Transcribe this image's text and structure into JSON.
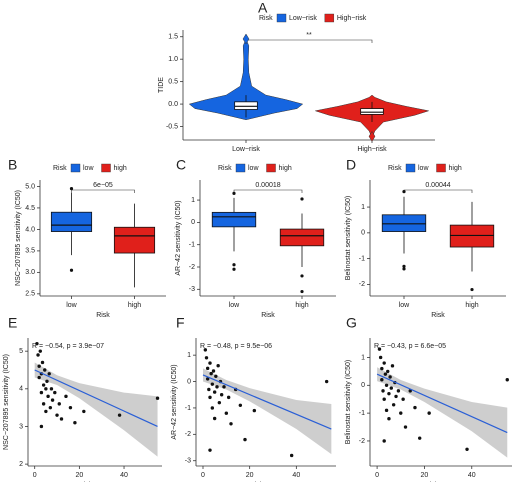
{
  "chart_data": [
    {
      "type": "violin",
      "panel": "A",
      "ylabel": "TIDE",
      "legend_title": "Risk",
      "annotation": "**",
      "categories": [
        "Low−risk",
        "High−risk"
      ],
      "ylim": [
        -0.8,
        1.65
      ],
      "yticks": [
        -0.5,
        {
          "value": 0,
          "label": "0.0"
        },
        0.5,
        {
          "value": 1,
          "label": "1.0"
        },
        1.5
      ],
      "series": [
        {
          "name": "Low−risk",
          "color": "#1565e0",
          "whisker_low": -0.3,
          "q1": -0.12,
          "median": -0.05,
          "q3": 0.05,
          "whisker_high": 0.2,
          "outliers": [
            1.45
          ],
          "levels": [
            -0.35,
            -0.2,
            -0.1,
            0,
            0.1,
            0.2,
            0.4,
            0.7,
            1.0,
            1.3,
            1.45
          ],
          "density": [
            0,
            0.5,
            0.9,
            1,
            0.7,
            0.35,
            0.1,
            0.05,
            0.04,
            0.05,
            0
          ]
        },
        {
          "name": "High−risk",
          "color": "#e0201b",
          "whisker_low": -0.4,
          "q1": -0.23,
          "median": -0.18,
          "q3": -0.1,
          "whisker_high": 0.05,
          "outliers": [
            -0.72
          ],
          "levels": [
            -0.75,
            -0.6,
            -0.4,
            -0.25,
            -0.15,
            -0.05,
            0.05,
            0.15,
            0.2
          ],
          "density": [
            0,
            0.05,
            0.2,
            0.75,
            1,
            0.6,
            0.25,
            0.05,
            0
          ]
        }
      ]
    },
    {
      "type": "box",
      "panel": "B",
      "ylabel": "NSC−207895 sensitivity (IC50)",
      "xlabel": "Risk",
      "legend_title": "Risk",
      "annotation": "6e−05",
      "categories": [
        "low",
        "high"
      ],
      "ylim": [
        2.45,
        5.15
      ],
      "yticks": [
        2.5,
        {
          "value": 3,
          "label": "3.0"
        },
        3.5,
        {
          "value": 4,
          "label": "4.0"
        },
        4.5,
        {
          "value": 5,
          "label": "5.0"
        }
      ],
      "series": [
        {
          "name": "low",
          "color": "#1565e0",
          "whisker_low": 3.4,
          "q1": 3.95,
          "median": 4.1,
          "q3": 4.4,
          "whisker_high": 4.85,
          "outliers": [
            3.05,
            4.95
          ]
        },
        {
          "name": "high",
          "color": "#e0201b",
          "whisker_low": 2.65,
          "q1": 3.45,
          "median": 3.85,
          "q3": 4.05,
          "whisker_high": 4.6,
          "outliers": []
        }
      ]
    },
    {
      "type": "box",
      "panel": "C",
      "ylabel": "AR−42 sensitivity (IC50)",
      "xlabel": "Risk",
      "legend_title": "Risk",
      "annotation": "0.00018",
      "categories": [
        "low",
        "high"
      ],
      "ylim": [
        -3.3,
        1.9
      ],
      "yticks": [
        -3,
        -2,
        -1,
        0,
        1
      ],
      "series": [
        {
          "name": "low",
          "color": "#1565e0",
          "whisker_low": -1.3,
          "q1": -0.2,
          "median": 0.25,
          "q3": 0.45,
          "whisker_high": 1.1,
          "outliers": [
            -1.9,
            -2.1,
            1.3
          ]
        },
        {
          "name": "high",
          "color": "#e0201b",
          "whisker_low": -2.0,
          "q1": -1.05,
          "median": -0.6,
          "q3": -0.3,
          "whisker_high": 0.4,
          "outliers": [
            1.05,
            -2.4,
            -3.1
          ]
        }
      ]
    },
    {
      "type": "box",
      "panel": "D",
      "ylabel": "Belinostat sensitivity (IC50)",
      "xlabel": "Risk",
      "legend_title": "Risk",
      "annotation": "0.00044",
      "categories": [
        "low",
        "high"
      ],
      "ylim": [
        -2.45,
        2.05
      ],
      "yticks": [
        -2,
        -1,
        0,
        1
      ],
      "series": [
        {
          "name": "low",
          "color": "#1565e0",
          "whisker_low": -0.8,
          "q1": 0.05,
          "median": 0.35,
          "q3": 0.7,
          "whisker_high": 1.4,
          "outliers": [
            -1.3,
            -1.4,
            1.6
          ]
        },
        {
          "name": "high",
          "color": "#e0201b",
          "whisker_low": -1.5,
          "q1": -0.55,
          "median": -0.1,
          "q3": 0.3,
          "whisker_high": 1.2,
          "outliers": [
            -2.2
          ]
        }
      ]
    },
    {
      "type": "scatter",
      "panel": "E",
      "ylabel": "NSC−207895 sensitivity (IC50)",
      "xlabel": "Risk score",
      "annotation": "R = −0.54, p = 3.9e−07",
      "xlim": [
        -3,
        57
      ],
      "xticks": [
        0,
        20,
        40
      ],
      "ylim": [
        1.95,
        5.35
      ],
      "yticks": [
        2,
        3,
        4,
        5
      ],
      "x": [
        1,
        1.5,
        2,
        2,
        2.5,
        3,
        3,
        3.5,
        4,
        4,
        4.5,
        5,
        5,
        5.5,
        6,
        6.5,
        7,
        7.5,
        8,
        9,
        10,
        11,
        12,
        14,
        16,
        18,
        22,
        38,
        55,
        3
      ],
      "y": [
        5.2,
        4.9,
        4.6,
        4.3,
        5.0,
        4.4,
        3.9,
        4.7,
        4.1,
        3.6,
        4.5,
        4.0,
        3.4,
        4.2,
        3.8,
        4.4,
        3.5,
        4.0,
        3.7,
        3.9,
        3.3,
        3.6,
        3.2,
        3.8,
        3.5,
        3.1,
        3.4,
        3.3,
        3.75,
        3.0
      ],
      "fit": {
        "x": [
          0,
          55
        ],
        "y": [
          4.5,
          3.0
        ]
      },
      "band": {
        "x": [
          0,
          10,
          20,
          40,
          55
        ],
        "lower": [
          4.3,
          4.1,
          3.75,
          2.9,
          2.2
        ],
        "upper": [
          4.7,
          4.36,
          4.15,
          3.9,
          3.8
        ]
      }
    },
    {
      "type": "scatter",
      "panel": "F",
      "ylabel": "AR−42 sensitivity (IC50)",
      "xlabel": "Risk score",
      "annotation": "R = −0.48, p = 9.5e−06",
      "xlim": [
        -3,
        57
      ],
      "xticks": [
        0,
        20,
        40
      ],
      "ylim": [
        -3.2,
        1.65
      ],
      "yticks": [
        -3,
        -2,
        -1,
        0,
        1
      ],
      "x": [
        1,
        1.5,
        2,
        2,
        2.5,
        3,
        3,
        3.5,
        4,
        4,
        4.5,
        5,
        5,
        5.5,
        6,
        6.5,
        7,
        7.5,
        8,
        9,
        10,
        11,
        12,
        14,
        16,
        18,
        22,
        38,
        53,
        3
      ],
      "y": [
        1.2,
        0.9,
        0.5,
        0.1,
        -0.3,
        0.7,
        -0.6,
        0.3,
        -0.1,
        -1.0,
        0.4,
        -0.4,
        -1.4,
        0.2,
        -0.2,
        0.6,
        -0.8,
        0.0,
        -0.5,
        -0.2,
        -1.2,
        -0.6,
        -1.6,
        -0.3,
        -0.9,
        -2.2,
        -1.1,
        -2.8,
        0.0,
        -2.6
      ],
      "fit": {
        "x": [
          0,
          55
        ],
        "y": [
          0.25,
          -1.8
        ]
      },
      "band": {
        "x": [
          0,
          10,
          20,
          40,
          55
        ],
        "lower": [
          0.0,
          -0.3,
          -0.75,
          -1.8,
          -2.75
        ],
        "upper": [
          0.5,
          0.06,
          -0.25,
          -0.7,
          -0.85
        ]
      }
    },
    {
      "type": "scatter",
      "panel": "G",
      "ylabel": "Belinostat sensitivity (IC50)",
      "xlabel": "Risk score",
      "annotation": "R = −0.43, p = 6.6e−05",
      "xlim": [
        -3,
        57
      ],
      "xticks": [
        0,
        20,
        40
      ],
      "ylim": [
        -2.9,
        1.7
      ],
      "yticks": [
        -2,
        -1,
        0,
        1
      ],
      "x": [
        1,
        1.5,
        2,
        2,
        2.5,
        3,
        3,
        3.5,
        4,
        4,
        4.5,
        5,
        5,
        5.5,
        6,
        6.5,
        7,
        7.5,
        8,
        9,
        10,
        11,
        12,
        14,
        16,
        18,
        22,
        38,
        55,
        3
      ],
      "y": [
        1.3,
        1.0,
        0.6,
        0.2,
        -0.2,
        0.8,
        -0.5,
        0.4,
        0.0,
        -0.9,
        0.5,
        -0.3,
        -1.2,
        0.3,
        -0.1,
        0.7,
        -0.7,
        0.1,
        -0.4,
        -0.2,
        -1.0,
        -0.5,
        -1.5,
        -0.2,
        -0.8,
        -1.9,
        -1.0,
        -2.3,
        0.2,
        -2.0
      ],
      "fit": {
        "x": [
          0,
          55
        ],
        "y": [
          0.4,
          -1.7
        ]
      },
      "band": {
        "x": [
          0,
          10,
          20,
          40,
          55
        ],
        "lower": [
          0.15,
          -0.15,
          -0.6,
          -1.65,
          -2.6
        ],
        "upper": [
          0.65,
          0.19,
          -0.12,
          -0.6,
          -0.8
        ]
      }
    }
  ]
}
